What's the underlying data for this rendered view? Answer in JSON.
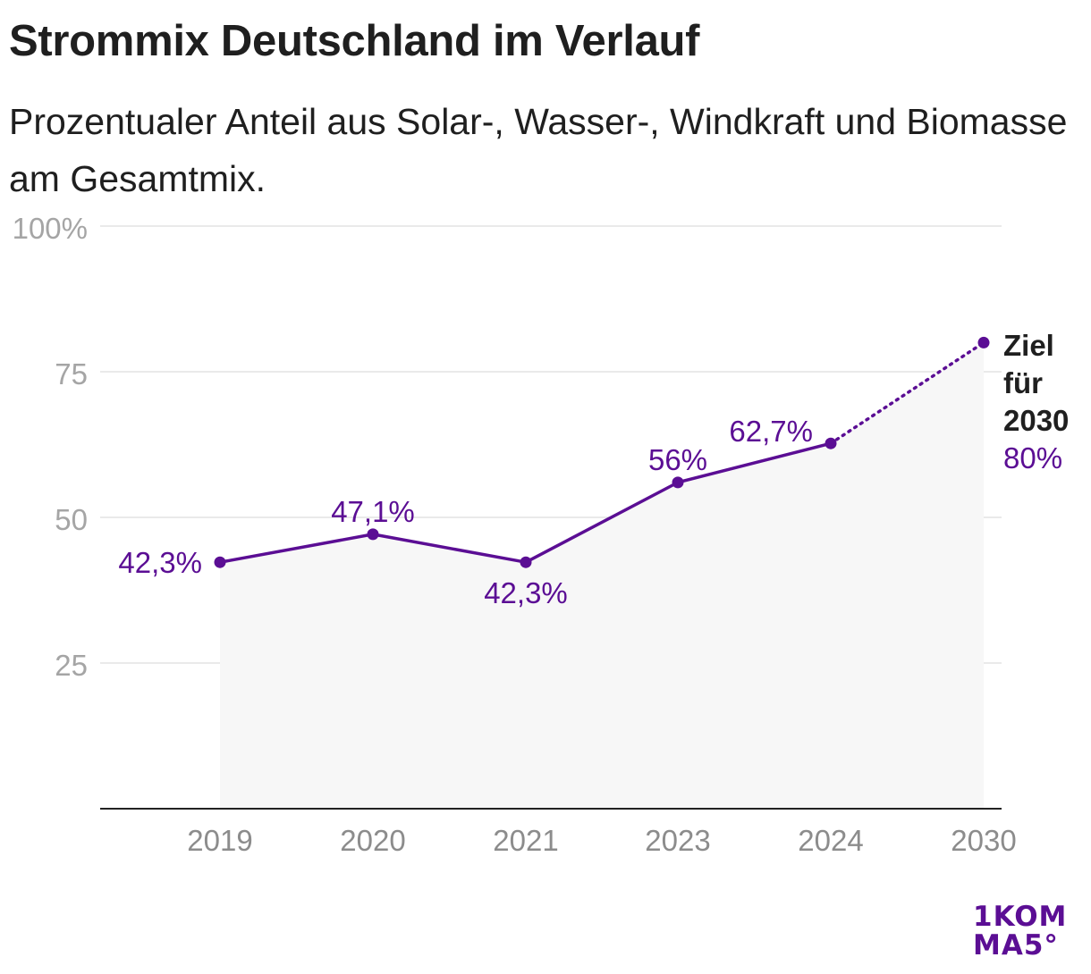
{
  "title": "Strommix Deutschland im Verlauf",
  "subtitle": "Prozentualer Anteil aus Solar-, Wasser-, Windkraft und Biomasse am Gesamtmix.",
  "colors": {
    "accent": "#5b0e94",
    "text": "#1f1f1f",
    "axis_text": "#8c8c8c",
    "grid": "#e3e3e3",
    "area": "#f7f7f7"
  },
  "logo": {
    "line1": "1KOM",
    "line2": "MA5°"
  },
  "chart_data": {
    "type": "line",
    "categories": [
      "2019",
      "2020",
      "2021",
      "2023",
      "2024",
      "2030"
    ],
    "values": [
      42.3,
      47.1,
      42.3,
      56,
      62.7,
      80
    ],
    "data_labels": [
      "42,3%",
      "47,1%",
      "42,3%",
      "56%",
      "62,7%",
      "80%"
    ],
    "projected_from_index": 4,
    "target_annotation": [
      "Ziel",
      "für",
      "2030"
    ],
    "y_ticks": [
      {
        "value": 25,
        "label": "25"
      },
      {
        "value": 50,
        "label": "50"
      },
      {
        "value": 75,
        "label": "75"
      },
      {
        "value": 100,
        "label": "100%"
      }
    ],
    "ylim": [
      0,
      100
    ],
    "grid": true,
    "area_fill": true
  }
}
